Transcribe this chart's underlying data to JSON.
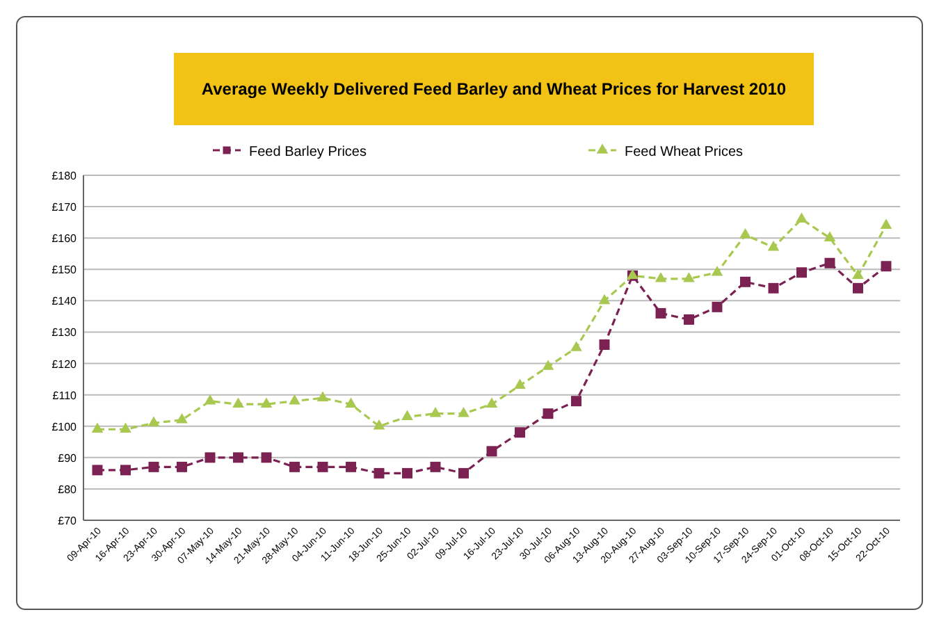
{
  "chart_data": {
    "type": "line",
    "title": "Average Weekly Delivered Feed Barley and Wheat Prices for Harvest 2010",
    "categories": [
      "09-Apr-10",
      "16-Apr-10",
      "23-Apr-10",
      "30-Apr-10",
      "07-May-10",
      "14-May-10",
      "21-May-10",
      "28-May-10",
      "04-Jun-10",
      "11-Jun-10",
      "18-Jun-10",
      "25-Jun-10",
      "02-Jul-10",
      "09-Jul-10",
      "16-Jul-10",
      "23-Jul-10",
      "30-Jul-10",
      "06-Aug-10",
      "13-Aug-10",
      "20-Aug-10",
      "27-Aug-10",
      "03-Sep-10",
      "10-Sep-10",
      "17-Sep-10",
      "24-Sep-10",
      "01-Oct-10",
      "08-Oct-10",
      "15-Oct-10",
      "22-Oct-10"
    ],
    "series": [
      {
        "name": "Feed Barley Prices",
        "color": "#7b2252",
        "marker": "square",
        "line_style": "dashed",
        "values": [
          86,
          86,
          87,
          87,
          90,
          90,
          90,
          87,
          87,
          87,
          85,
          85,
          87,
          85,
          92,
          98,
          104,
          108,
          126,
          148,
          136,
          134,
          138,
          146,
          144,
          149,
          152,
          144,
          151
        ]
      },
      {
        "name": "Feed Wheat Prices",
        "color": "#a8c850",
        "marker": "triangle",
        "line_style": "dashed",
        "values": [
          99,
          99,
          101,
          102,
          108,
          107,
          107,
          108,
          109,
          107,
          100,
          103,
          104,
          104,
          107,
          113,
          119,
          125,
          140,
          148,
          147,
          147,
          149,
          161,
          157,
          166,
          160,
          148,
          164
        ]
      }
    ],
    "ylim": [
      70,
      180
    ],
    "yticks": [
      {
        "value": 70,
        "label": "£70"
      },
      {
        "value": 80,
        "label": "£80"
      },
      {
        "value": 90,
        "label": "£90"
      },
      {
        "value": 100,
        "label": "£100"
      },
      {
        "value": 110,
        "label": "£110"
      },
      {
        "value": 120,
        "label": "£120"
      },
      {
        "value": 130,
        "label": "£130"
      },
      {
        "value": 140,
        "label": "£140"
      },
      {
        "value": 150,
        "label": "£150"
      },
      {
        "value": 160,
        "label": "£160"
      },
      {
        "value": 170,
        "label": "£170"
      },
      {
        "value": 180,
        "label": "£180"
      }
    ],
    "grid": "y",
    "legend": "top"
  }
}
